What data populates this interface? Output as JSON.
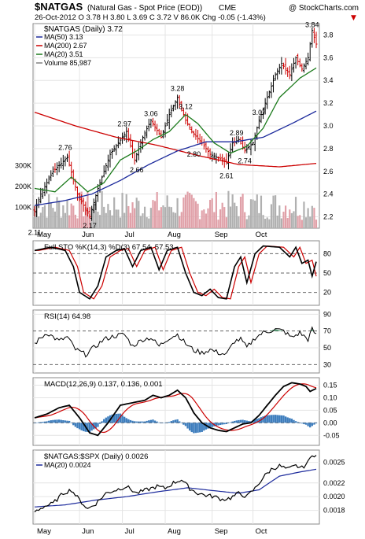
{
  "header": {
    "symbol": "$NATGAS",
    "name": "(Natural Gas - Spot Price (EOD))",
    "exchange": "CME",
    "watermark": "@ StockCharts.com",
    "quote": "26-Oct-2012  O 3.78  H 3.80  L 3.69  C 3.72  V 86.0K  Chg -0.05 (-1.43%)",
    "quote_arrow": "▼"
  },
  "colors": {
    "up": "#000000",
    "down": "#cc0000",
    "ma50": "#1c2a9c",
    "ma200": "#cc0000",
    "ma20": "#1b7a1b",
    "volume_up": "#b0b0b0",
    "volume_down": "#e0a0a8",
    "stoch_d": "#cc0000",
    "rsi_fill": "#2e8b57",
    "macd_signal": "#cc0000",
    "macd_hist": "#3d7dbd",
    "ratio_ma": "#1c2a9c"
  },
  "chart_data": [
    {
      "type": "candlestick",
      "title": "$NATGAS (Daily) 3.72",
      "legend": [
        {
          "label": "MA(50) 3.13",
          "color": "#1c2a9c"
        },
        {
          "label": "MA(200) 2.67",
          "color": "#cc0000"
        },
        {
          "label": "MA(20) 3.51",
          "color": "#1b7a1b"
        },
        {
          "label": "Volume 85,987",
          "color": "#808080"
        }
      ],
      "x_labels": [
        "May",
        "Jun",
        "Jul",
        "Aug",
        "Sep",
        "Oct"
      ],
      "y_ticks": [
        2.2,
        2.4,
        2.6,
        2.8,
        3.0,
        3.2,
        3.4,
        3.6,
        3.8
      ],
      "ylim": [
        2.1,
        3.9
      ],
      "volume_ticks": [
        "100K",
        "200K",
        "300K"
      ],
      "annotations": [
        {
          "label": "2.11",
          "value": 2.11
        },
        {
          "label": "2.76",
          "value": 2.76
        },
        {
          "label": "2.17",
          "value": 2.17
        },
        {
          "label": "2.97",
          "value": 2.97
        },
        {
          "label": "2.66",
          "value": 2.66
        },
        {
          "label": "3.06",
          "value": 3.06
        },
        {
          "label": "3.28",
          "value": 3.28
        },
        {
          "label": "3.12",
          "value": 3.12
        },
        {
          "label": "2.80",
          "value": 2.8
        },
        {
          "label": "2.89",
          "value": 2.89
        },
        {
          "label": "2.61",
          "value": 2.61
        },
        {
          "label": "2.74",
          "value": 2.74
        },
        {
          "label": "3.07",
          "value": 3.07
        },
        {
          "label": "3.84",
          "value": 3.84
        }
      ],
      "close_keypoints": [
        {
          "d": 0,
          "v": 2.25
        },
        {
          "d": 3,
          "v": 2.4
        },
        {
          "d": 9,
          "v": 2.6
        },
        {
          "d": 16,
          "v": 2.72
        },
        {
          "d": 21,
          "v": 2.4
        },
        {
          "d": 27,
          "v": 2.2
        },
        {
          "d": 31,
          "v": 2.45
        },
        {
          "d": 37,
          "v": 2.75
        },
        {
          "d": 41,
          "v": 2.85
        },
        {
          "d": 45,
          "v": 2.95
        },
        {
          "d": 49,
          "v": 2.7
        },
        {
          "d": 53,
          "v": 2.9
        },
        {
          "d": 57,
          "v": 3.05
        },
        {
          "d": 62,
          "v": 2.9
        },
        {
          "d": 66,
          "v": 3.1
        },
        {
          "d": 70,
          "v": 3.25
        },
        {
          "d": 74,
          "v": 3.05
        },
        {
          "d": 77,
          "v": 2.95
        },
        {
          "d": 82,
          "v": 2.85
        },
        {
          "d": 86,
          "v": 2.75
        },
        {
          "d": 90,
          "v": 2.72
        },
        {
          "d": 94,
          "v": 2.68
        },
        {
          "d": 97,
          "v": 2.85
        },
        {
          "d": 100,
          "v": 2.88
        },
        {
          "d": 103,
          "v": 2.78
        },
        {
          "d": 107,
          "v": 2.85
        },
        {
          "d": 110,
          "v": 3.05
        },
        {
          "d": 114,
          "v": 3.25
        },
        {
          "d": 118,
          "v": 3.45
        },
        {
          "d": 121,
          "v": 3.55
        },
        {
          "d": 125,
          "v": 3.45
        },
        {
          "d": 128,
          "v": 3.6
        },
        {
          "d": 131,
          "v": 3.5
        },
        {
          "d": 134,
          "v": 3.6
        },
        {
          "d": 136,
          "v": 3.84
        },
        {
          "d": 138,
          "v": 3.72
        }
      ],
      "ma20_keypoints": [
        {
          "d": 0,
          "v": 2.45
        },
        {
          "d": 10,
          "v": 2.42
        },
        {
          "d": 18,
          "v": 2.55
        },
        {
          "d": 26,
          "v": 2.42
        },
        {
          "d": 34,
          "v": 2.5
        },
        {
          "d": 42,
          "v": 2.7
        },
        {
          "d": 50,
          "v": 2.78
        },
        {
          "d": 58,
          "v": 2.88
        },
        {
          "d": 66,
          "v": 2.95
        },
        {
          "d": 74,
          "v": 3.1
        },
        {
          "d": 80,
          "v": 3.02
        },
        {
          "d": 88,
          "v": 2.85
        },
        {
          "d": 96,
          "v": 2.76
        },
        {
          "d": 104,
          "v": 2.82
        },
        {
          "d": 112,
          "v": 2.98
        },
        {
          "d": 120,
          "v": 3.25
        },
        {
          "d": 130,
          "v": 3.42
        },
        {
          "d": 138,
          "v": 3.51
        }
      ],
      "ma50_keypoints": [
        {
          "d": 0,
          "v": 2.3
        },
        {
          "d": 14,
          "v": 2.34
        },
        {
          "d": 28,
          "v": 2.4
        },
        {
          "d": 42,
          "v": 2.52
        },
        {
          "d": 56,
          "v": 2.66
        },
        {
          "d": 70,
          "v": 2.78
        },
        {
          "d": 84,
          "v": 2.86
        },
        {
          "d": 98,
          "v": 2.86
        },
        {
          "d": 112,
          "v": 2.9
        },
        {
          "d": 126,
          "v": 3.02
        },
        {
          "d": 138,
          "v": 3.13
        }
      ],
      "ma200_keypoints": [
        {
          "d": 0,
          "v": 3.12
        },
        {
          "d": 20,
          "v": 3.0
        },
        {
          "d": 40,
          "v": 2.9
        },
        {
          "d": 60,
          "v": 2.83
        },
        {
          "d": 80,
          "v": 2.74
        },
        {
          "d": 100,
          "v": 2.66
        },
        {
          "d": 120,
          "v": 2.64
        },
        {
          "d": 138,
          "v": 2.67
        }
      ]
    },
    {
      "type": "line",
      "title": "Full STO %K(14,3) %D(3) 67.54, 57.53",
      "series": [
        {
          "name": "%K(14,3)",
          "last": 67.54
        },
        {
          "name": "%D(3)",
          "last": 57.53
        }
      ],
      "y_ticks": [
        20,
        50,
        80
      ],
      "ylim": [
        0,
        100
      ],
      "k_keypoints": [
        {
          "d": 0,
          "v": 85
        },
        {
          "d": 8,
          "v": 90
        },
        {
          "d": 15,
          "v": 85
        },
        {
          "d": 19,
          "v": 60
        },
        {
          "d": 22,
          "v": 20
        },
        {
          "d": 27,
          "v": 10
        },
        {
          "d": 31,
          "v": 30
        },
        {
          "d": 35,
          "v": 75
        },
        {
          "d": 40,
          "v": 85
        },
        {
          "d": 44,
          "v": 88
        },
        {
          "d": 48,
          "v": 60
        },
        {
          "d": 52,
          "v": 85
        },
        {
          "d": 57,
          "v": 90
        },
        {
          "d": 61,
          "v": 55
        },
        {
          "d": 65,
          "v": 85
        },
        {
          "d": 70,
          "v": 90
        },
        {
          "d": 74,
          "v": 50
        },
        {
          "d": 78,
          "v": 20
        },
        {
          "d": 82,
          "v": 15
        },
        {
          "d": 86,
          "v": 25
        },
        {
          "d": 90,
          "v": 12
        },
        {
          "d": 94,
          "v": 10
        },
        {
          "d": 98,
          "v": 60
        },
        {
          "d": 101,
          "v": 75
        },
        {
          "d": 104,
          "v": 35
        },
        {
          "d": 108,
          "v": 80
        },
        {
          "d": 112,
          "v": 92
        },
        {
          "d": 120,
          "v": 90
        },
        {
          "d": 125,
          "v": 75
        },
        {
          "d": 128,
          "v": 90
        },
        {
          "d": 131,
          "v": 65
        },
        {
          "d": 134,
          "v": 70
        },
        {
          "d": 136,
          "v": 45
        },
        {
          "d": 138,
          "v": 67.54
        }
      ]
    },
    {
      "type": "line",
      "title": "RSI(14) 64.98",
      "series": [
        {
          "name": "RSI(14)",
          "last": 64.98
        }
      ],
      "y_ticks": [
        30,
        50,
        70,
        90
      ],
      "ylim": [
        20,
        95
      ],
      "rsi_keypoints": [
        {
          "d": 0,
          "v": 55
        },
        {
          "d": 6,
          "v": 68
        },
        {
          "d": 12,
          "v": 58
        },
        {
          "d": 16,
          "v": 63
        },
        {
          "d": 20,
          "v": 48
        },
        {
          "d": 25,
          "v": 42
        },
        {
          "d": 29,
          "v": 50
        },
        {
          "d": 34,
          "v": 60
        },
        {
          "d": 39,
          "v": 64
        },
        {
          "d": 44,
          "v": 66
        },
        {
          "d": 48,
          "v": 52
        },
        {
          "d": 53,
          "v": 60
        },
        {
          "d": 57,
          "v": 62
        },
        {
          "d": 61,
          "v": 52
        },
        {
          "d": 66,
          "v": 62
        },
        {
          "d": 70,
          "v": 66
        },
        {
          "d": 74,
          "v": 55
        },
        {
          "d": 78,
          "v": 47
        },
        {
          "d": 82,
          "v": 44
        },
        {
          "d": 86,
          "v": 48
        },
        {
          "d": 90,
          "v": 44
        },
        {
          "d": 94,
          "v": 42
        },
        {
          "d": 98,
          "v": 58
        },
        {
          "d": 101,
          "v": 60
        },
        {
          "d": 104,
          "v": 50
        },
        {
          "d": 108,
          "v": 62
        },
        {
          "d": 112,
          "v": 68
        },
        {
          "d": 118,
          "v": 72
        },
        {
          "d": 122,
          "v": 70
        },
        {
          "d": 126,
          "v": 62
        },
        {
          "d": 130,
          "v": 68
        },
        {
          "d": 134,
          "v": 60
        },
        {
          "d": 136,
          "v": 72
        },
        {
          "d": 138,
          "v": 64.98
        }
      ]
    },
    {
      "type": "line",
      "title": "MACD(12,26,9) 0.137, 0.136, 0.001",
      "series": [
        {
          "name": "MACD(12,26,9)",
          "last": 0.137
        },
        {
          "name": "signal",
          "last": 0.136
        },
        {
          "name": "histogram",
          "last": 0.001
        }
      ],
      "y_ticks": [
        -0.05,
        0.0,
        0.05,
        0.1,
        0.15
      ],
      "y_tick_labels": [
        "-0.05",
        "0.00",
        "0.05",
        "0.10",
        "0.15"
      ],
      "ylim": [
        -0.09,
        0.18
      ],
      "macd_keypoints": [
        {
          "d": 0,
          "v": 0.02
        },
        {
          "d": 6,
          "v": 0.035
        },
        {
          "d": 12,
          "v": 0.06
        },
        {
          "d": 17,
          "v": 0.07
        },
        {
          "d": 22,
          "v": 0.02
        },
        {
          "d": 27,
          "v": -0.04
        },
        {
          "d": 31,
          "v": -0.05
        },
        {
          "d": 36,
          "v": 0.0
        },
        {
          "d": 42,
          "v": 0.07
        },
        {
          "d": 48,
          "v": 0.08
        },
        {
          "d": 54,
          "v": 0.09
        },
        {
          "d": 58,
          "v": 0.11
        },
        {
          "d": 62,
          "v": 0.1
        },
        {
          "d": 66,
          "v": 0.11
        },
        {
          "d": 70,
          "v": 0.13
        },
        {
          "d": 74,
          "v": 0.1
        },
        {
          "d": 78,
          "v": 0.04
        },
        {
          "d": 82,
          "v": 0.0
        },
        {
          "d": 86,
          "v": -0.02
        },
        {
          "d": 90,
          "v": -0.03
        },
        {
          "d": 94,
          "v": -0.035
        },
        {
          "d": 98,
          "v": -0.02
        },
        {
          "d": 102,
          "v": -0.005
        },
        {
          "d": 106,
          "v": 0.0
        },
        {
          "d": 110,
          "v": 0.03
        },
        {
          "d": 114,
          "v": 0.07
        },
        {
          "d": 118,
          "v": 0.11
        },
        {
          "d": 122,
          "v": 0.145
        },
        {
          "d": 126,
          "v": 0.16
        },
        {
          "d": 130,
          "v": 0.155
        },
        {
          "d": 133,
          "v": 0.145
        },
        {
          "d": 135,
          "v": 0.125
        },
        {
          "d": 138,
          "v": 0.137
        }
      ]
    },
    {
      "type": "line",
      "title": "$NATGAS:$SPX (Daily) 0.0026",
      "series": [
        {
          "name": "$NATGAS:$SPX (Daily)",
          "last": 0.0026
        },
        {
          "name": "MA(20)",
          "last": 0.0024
        }
      ],
      "legend": [
        {
          "label": "MA(20) 0.0024",
          "color": "#1c2a9c"
        }
      ],
      "x_labels": [
        "May",
        "Jun",
        "Jul",
        "Aug",
        "Sep",
        "Oct"
      ],
      "y_ticks": [
        0.0018,
        0.002,
        0.0022,
        0.0025
      ],
      "y_tick_labels": [
        "0.0018",
        "0.0020",
        "0.0022",
        "0.0025"
      ],
      "ylim": [
        0.0016,
        0.00268
      ],
      "ratio_keypoints": [
        {
          "d": 0,
          "v": 0.00178
        },
        {
          "d": 4,
          "v": 0.00185
        },
        {
          "d": 9,
          "v": 0.0019
        },
        {
          "d": 14,
          "v": 0.00205
        },
        {
          "d": 18,
          "v": 0.0021
        },
        {
          "d": 22,
          "v": 0.00195
        },
        {
          "d": 26,
          "v": 0.00182
        },
        {
          "d": 30,
          "v": 0.0019
        },
        {
          "d": 35,
          "v": 0.00205
        },
        {
          "d": 40,
          "v": 0.0021
        },
        {
          "d": 45,
          "v": 0.00215
        },
        {
          "d": 50,
          "v": 0.00205
        },
        {
          "d": 55,
          "v": 0.0021
        },
        {
          "d": 60,
          "v": 0.00215
        },
        {
          "d": 64,
          "v": 0.00212
        },
        {
          "d": 68,
          "v": 0.0022
        },
        {
          "d": 72,
          "v": 0.00225
        },
        {
          "d": 76,
          "v": 0.00212
        },
        {
          "d": 80,
          "v": 0.00205
        },
        {
          "d": 84,
          "v": 0.00202
        },
        {
          "d": 88,
          "v": 0.002
        },
        {
          "d": 92,
          "v": 0.00196
        },
        {
          "d": 96,
          "v": 0.00198
        },
        {
          "d": 100,
          "v": 0.00205
        },
        {
          "d": 104,
          "v": 0.002
        },
        {
          "d": 108,
          "v": 0.00212
        },
        {
          "d": 112,
          "v": 0.00228
        },
        {
          "d": 116,
          "v": 0.0024
        },
        {
          "d": 120,
          "v": 0.00245
        },
        {
          "d": 124,
          "v": 0.0024
        },
        {
          "d": 128,
          "v": 0.00245
        },
        {
          "d": 131,
          "v": 0.00242
        },
        {
          "d": 134,
          "v": 0.0025
        },
        {
          "d": 136,
          "v": 0.00262
        },
        {
          "d": 138,
          "v": 0.0026
        }
      ],
      "ma_keypoints": [
        {
          "d": 0,
          "v": 0.00185
        },
        {
          "d": 15,
          "v": 0.00188
        },
        {
          "d": 30,
          "v": 0.00195
        },
        {
          "d": 45,
          "v": 0.002
        },
        {
          "d": 60,
          "v": 0.00207
        },
        {
          "d": 75,
          "v": 0.00213
        },
        {
          "d": 90,
          "v": 0.00208
        },
        {
          "d": 100,
          "v": 0.00205
        },
        {
          "d": 110,
          "v": 0.0021
        },
        {
          "d": 120,
          "v": 0.0023
        },
        {
          "d": 130,
          "v": 0.00236
        },
        {
          "d": 138,
          "v": 0.0024
        }
      ]
    }
  ]
}
